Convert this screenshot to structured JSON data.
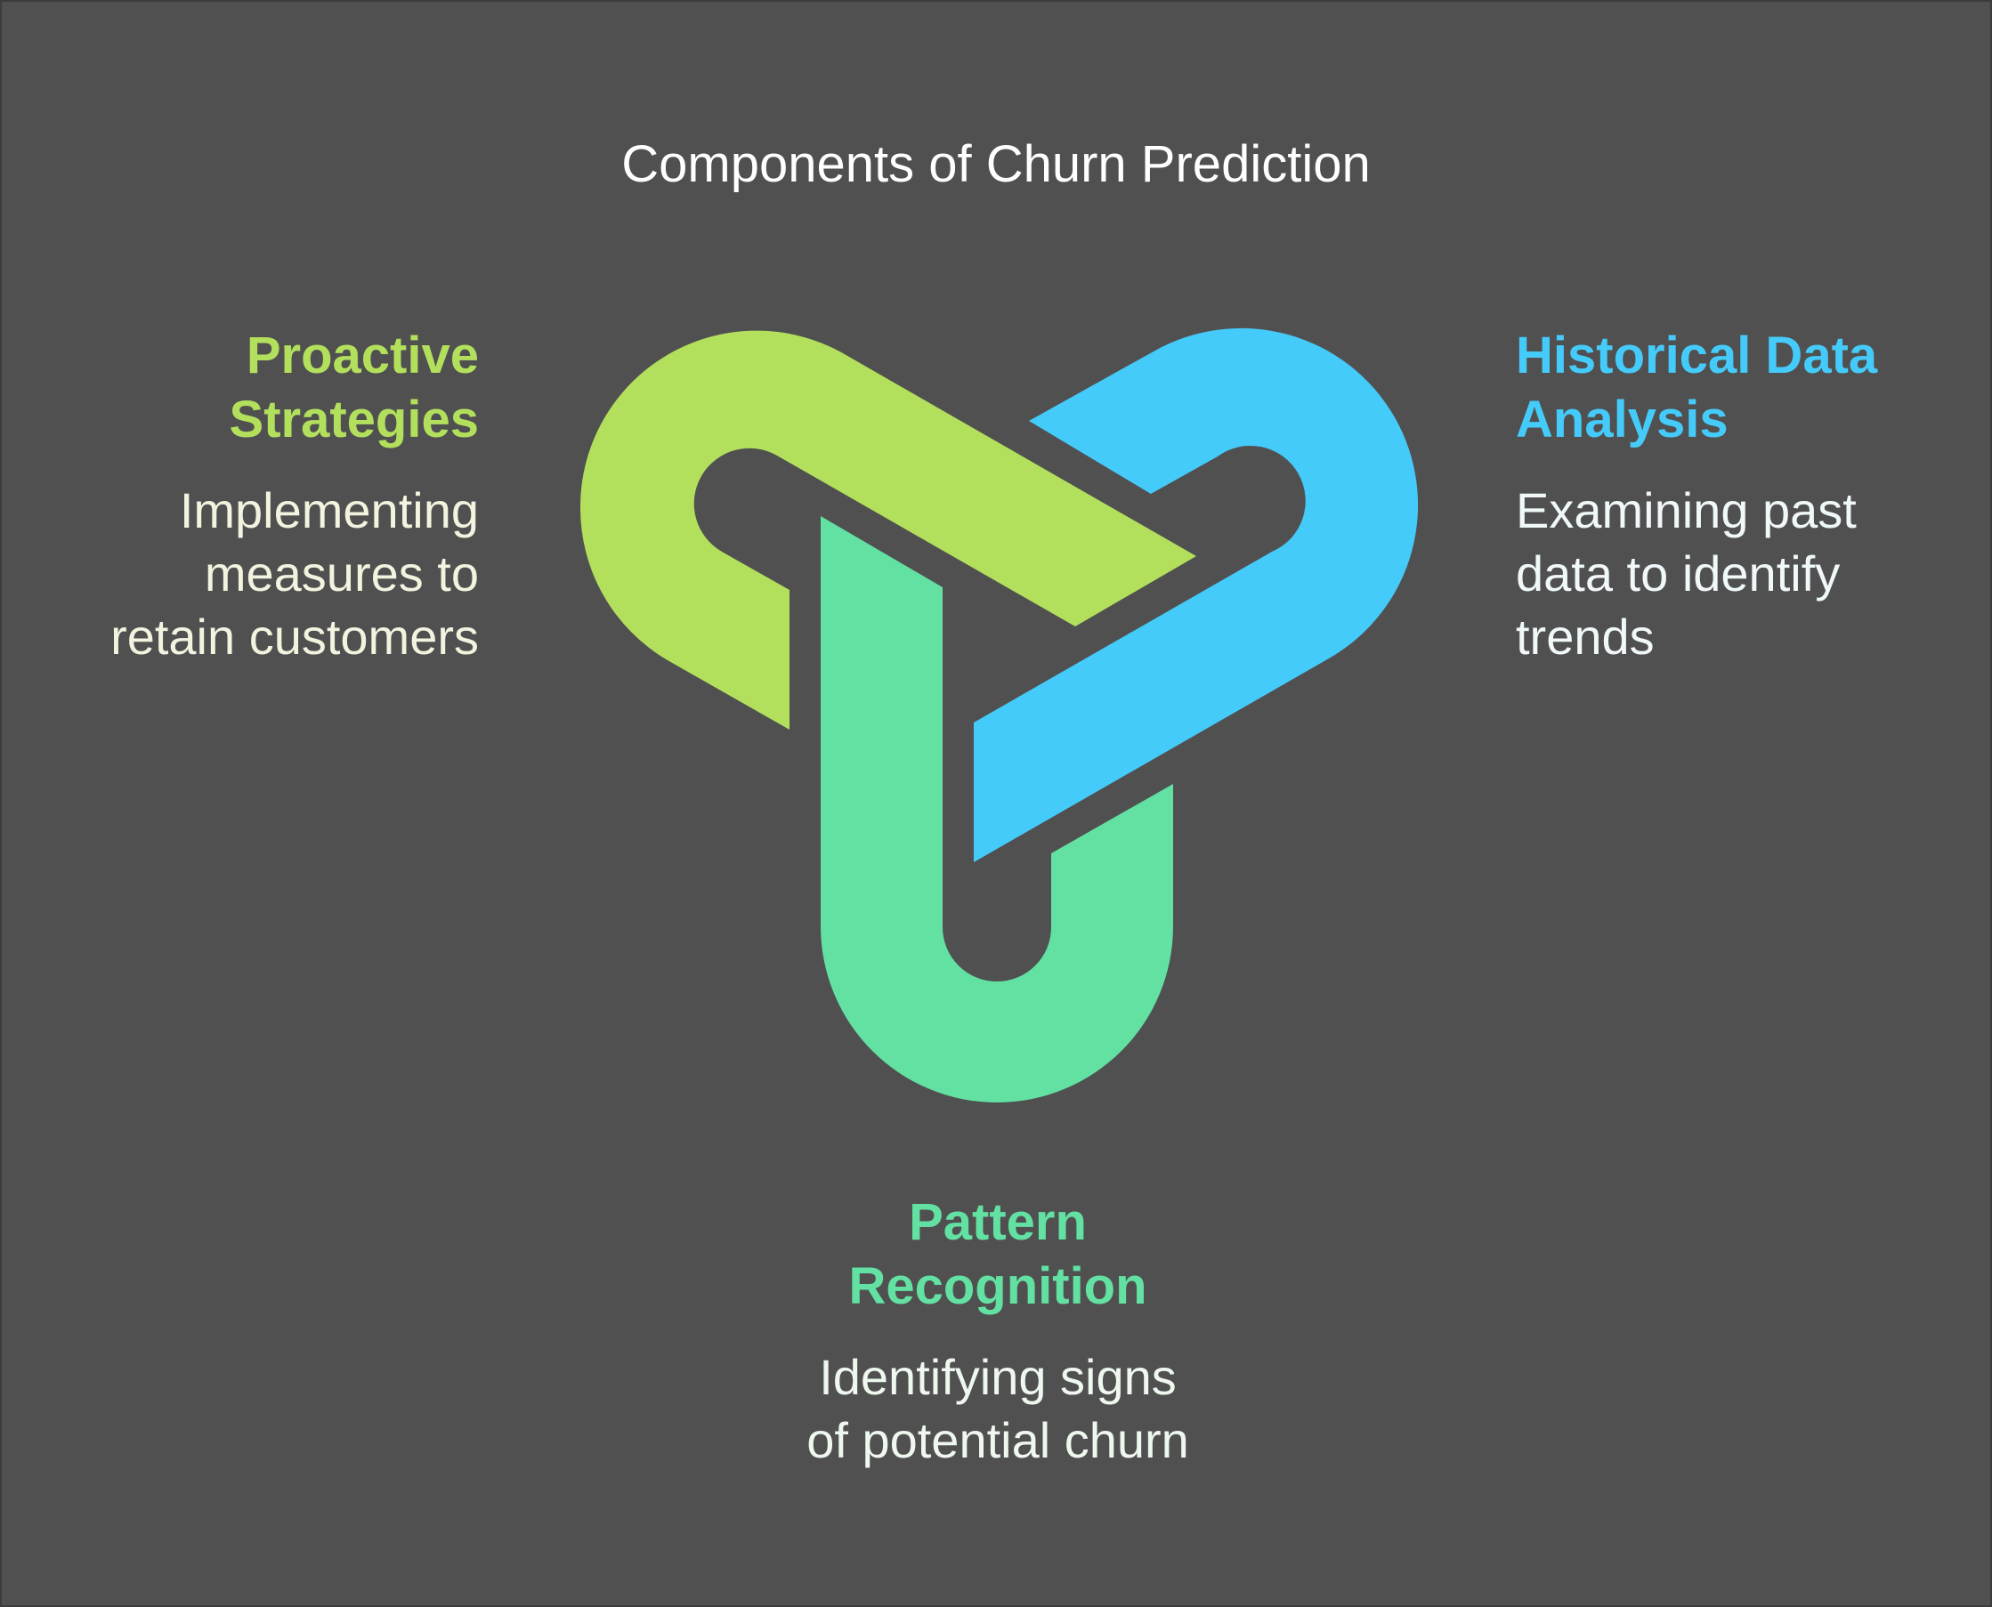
{
  "title": "Components of Churn Prediction",
  "colors": {
    "background": "#505050",
    "proactive": "#b3e05c",
    "historical": "#45cbfa",
    "pattern": "#62e1a3"
  },
  "components": {
    "proactive": {
      "heading_line1": "Proactive",
      "heading_line2": "Strategies",
      "desc_line1": "Implementing",
      "desc_line2": "measures to",
      "desc_line3": "retain customers"
    },
    "historical": {
      "heading_line1": "Historical Data",
      "heading_line2": "Analysis",
      "desc_line1": "Examining past",
      "desc_line2": "data to identify",
      "desc_line3": "trends"
    },
    "pattern": {
      "heading_line1": "Pattern",
      "heading_line2": "Recognition",
      "desc_line1": "Identifying signs",
      "desc_line2": "of potential churn"
    }
  }
}
